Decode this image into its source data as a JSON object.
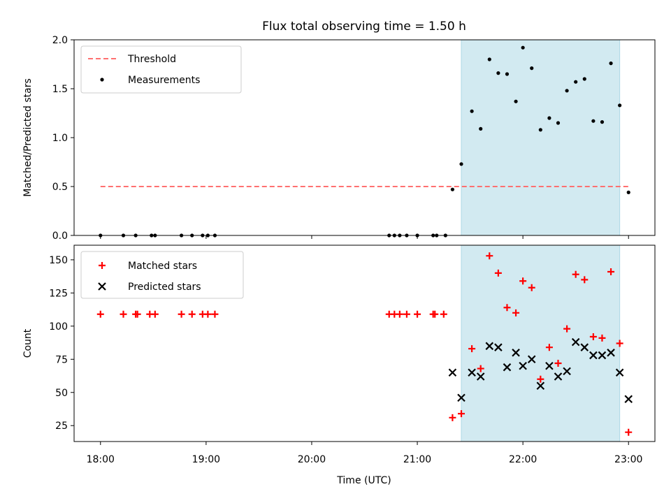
{
  "chart_data": {
    "type": "scatter",
    "title": "Flux total observing time = 1.50 h",
    "xlabel": "Time (UTC)",
    "x_ticks": [
      "18:00",
      "19:00",
      "20:00",
      "21:00",
      "22:00",
      "23:00"
    ],
    "x_range": [
      "17:45",
      "23:15"
    ],
    "highlight_span": [
      "21:25",
      "22:55"
    ],
    "colors": {
      "threshold": "#ff7070",
      "span": "#add8e6",
      "matched": "#ff0000",
      "predicted": "#000000",
      "measurements": "#000000"
    },
    "top": {
      "ylabel": "Matched/Predicted stars",
      "ylim": [
        0,
        2.0
      ],
      "yticks": [
        "0.0",
        "0.5",
        "1.0",
        "1.5",
        "2.0"
      ],
      "legend_position": "upper-left",
      "threshold": {
        "name": "Threshold",
        "value": 0.5,
        "x": [
          "18:00",
          "23:00"
        ]
      },
      "measurements": {
        "name": "Measurements",
        "points": [
          [
            "18:00",
            0
          ],
          [
            "18:13",
            0
          ],
          [
            "18:20",
            0
          ],
          [
            "18:29",
            0
          ],
          [
            "18:31",
            0
          ],
          [
            "18:46",
            0
          ],
          [
            "18:52",
            0
          ],
          [
            "18:58",
            0
          ],
          [
            "19:01",
            0
          ],
          [
            "19:05",
            0
          ],
          [
            "20:44",
            0
          ],
          [
            "20:47",
            0
          ],
          [
            "20:50",
            0
          ],
          [
            "20:54",
            0
          ],
          [
            "21:00",
            0
          ],
          [
            "21:09",
            0
          ],
          [
            "21:11",
            0
          ],
          [
            "21:16",
            0
          ],
          [
            "21:20",
            0.47
          ],
          [
            "21:25",
            0.73
          ],
          [
            "21:31",
            1.27
          ],
          [
            "21:36",
            1.09
          ],
          [
            "21:41",
            1.8
          ],
          [
            "21:46",
            1.66
          ],
          [
            "21:51",
            1.65
          ],
          [
            "21:56",
            1.37
          ],
          [
            "22:00",
            1.92
          ],
          [
            "22:05",
            1.71
          ],
          [
            "22:10",
            1.08
          ],
          [
            "22:15",
            1.2
          ],
          [
            "22:20",
            1.15
          ],
          [
            "22:25",
            1.48
          ],
          [
            "22:30",
            1.57
          ],
          [
            "22:35",
            1.6
          ],
          [
            "22:40",
            1.17
          ],
          [
            "22:45",
            1.16
          ],
          [
            "22:50",
            1.76
          ],
          [
            "22:55",
            1.33
          ],
          [
            "23:00",
            0.44
          ]
        ]
      }
    },
    "bottom": {
      "ylabel": "Count",
      "ylim": [
        13,
        161
      ],
      "yticks": [
        "25",
        "50",
        "75",
        "100",
        "125",
        "150"
      ],
      "legend_position": "upper-left",
      "matched": {
        "name": "Matched stars",
        "points": [
          [
            "18:00",
            109
          ],
          [
            "18:13",
            109
          ],
          [
            "18:20",
            109
          ],
          [
            "18:21",
            109
          ],
          [
            "18:28",
            109
          ],
          [
            "18:31",
            109
          ],
          [
            "18:46",
            109
          ],
          [
            "18:52",
            109
          ],
          [
            "18:58",
            109
          ],
          [
            "19:01",
            109
          ],
          [
            "19:05",
            109
          ],
          [
            "20:44",
            109
          ],
          [
            "20:47",
            109
          ],
          [
            "20:50",
            109
          ],
          [
            "20:54",
            109
          ],
          [
            "21:00",
            109
          ],
          [
            "21:09",
            109
          ],
          [
            "21:10",
            109
          ],
          [
            "21:15",
            109
          ],
          [
            "21:20",
            31
          ],
          [
            "21:25",
            34
          ],
          [
            "21:31",
            83
          ],
          [
            "21:36",
            68
          ],
          [
            "21:41",
            153
          ],
          [
            "21:46",
            140
          ],
          [
            "21:51",
            114
          ],
          [
            "21:56",
            110
          ],
          [
            "22:00",
            134
          ],
          [
            "22:05",
            129
          ],
          [
            "22:10",
            60
          ],
          [
            "22:15",
            84
          ],
          [
            "22:20",
            72
          ],
          [
            "22:25",
            98
          ],
          [
            "22:30",
            139
          ],
          [
            "22:35",
            135
          ],
          [
            "22:40",
            92
          ],
          [
            "22:45",
            91
          ],
          [
            "22:50",
            141
          ],
          [
            "22:55",
            87
          ],
          [
            "23:00",
            20
          ]
        ]
      },
      "predicted": {
        "name": "Predicted stars",
        "points": [
          [
            "21:20",
            65
          ],
          [
            "21:25",
            46
          ],
          [
            "21:31",
            65
          ],
          [
            "21:36",
            62
          ],
          [
            "21:41",
            85
          ],
          [
            "21:46",
            84
          ],
          [
            "21:51",
            69
          ],
          [
            "21:56",
            80
          ],
          [
            "22:00",
            70
          ],
          [
            "22:05",
            75
          ],
          [
            "22:10",
            55
          ],
          [
            "22:15",
            70
          ],
          [
            "22:20",
            62
          ],
          [
            "22:25",
            66
          ],
          [
            "22:30",
            88
          ],
          [
            "22:35",
            84
          ],
          [
            "22:40",
            78
          ],
          [
            "22:45",
            78
          ],
          [
            "22:50",
            80
          ],
          [
            "22:55",
            65
          ],
          [
            "23:00",
            45
          ]
        ]
      }
    }
  }
}
